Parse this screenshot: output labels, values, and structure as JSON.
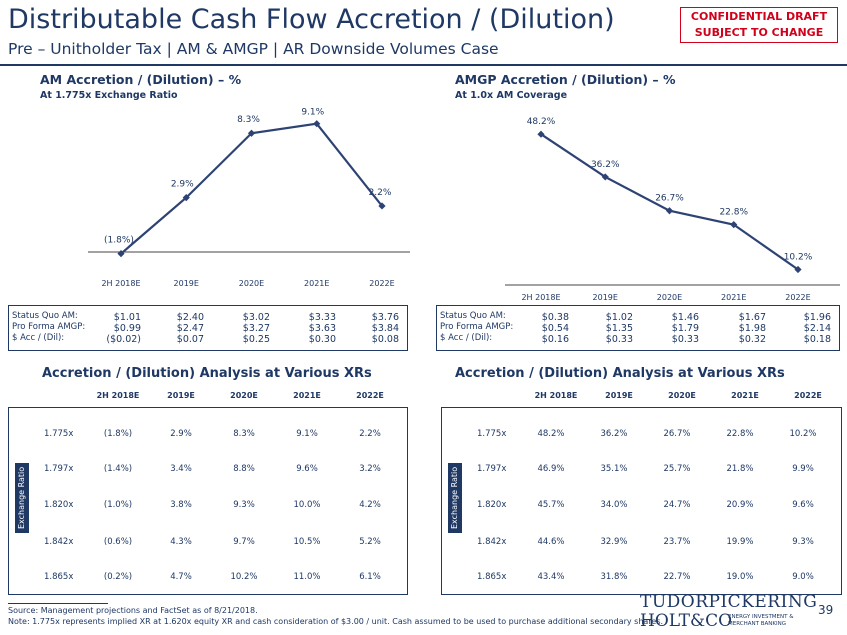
{
  "header": {
    "title": "Distributable Cash Flow Accretion / (Dilution)",
    "subtitle": "Pre – Unitholder Tax | AM & AMGP | AR Downside Volumes Case",
    "stamp_line1": "CONFIDENTIAL DRAFT",
    "stamp_line2": "SUBJECT TO CHANGE"
  },
  "chart_data": [
    {
      "type": "line",
      "title": "AM Accretion / (Dilution) – %",
      "subtitle": "At 1.775x Exchange Ratio",
      "categories": [
        "2H 2018E",
        "2019E",
        "2020E",
        "2021E",
        "2022E"
      ],
      "values": [
        -1.8,
        2.9,
        8.3,
        9.1,
        2.2
      ],
      "data_labels": [
        "(1.8%)",
        "2.9%",
        "8.3%",
        "9.1%",
        "2.2%"
      ],
      "ylim": [
        -2.5,
        10.5
      ],
      "color": "#2e4374"
    },
    {
      "type": "line",
      "title": "AMGP Accretion / (Dilution) – %",
      "subtitle": "At 1.0x AM Coverage",
      "categories": [
        "2H 2018E",
        "2019E",
        "2020E",
        "2021E",
        "2022E"
      ],
      "values": [
        48.2,
        36.2,
        26.7,
        22.8,
        10.2
      ],
      "data_labels": [
        "48.2%",
        "36.2%",
        "26.7%",
        "22.8%",
        "10.2%"
      ],
      "ylim": [
        5,
        55
      ],
      "color": "#2e4374"
    }
  ],
  "am_summary": {
    "labels": [
      "Status Quo AM:",
      "Pro Forma AMGP:",
      "$ Acc / (Dil):"
    ],
    "columns": [
      [
        "$1.01",
        "$0.99",
        "($0.02)"
      ],
      [
        "$2.40",
        "$2.47",
        "$0.07"
      ],
      [
        "$3.02",
        "$3.27",
        "$0.25"
      ],
      [
        "$3.33",
        "$3.63",
        "$0.30"
      ],
      [
        "$3.76",
        "$3.84",
        "$0.08"
      ]
    ]
  },
  "amgp_summary": {
    "labels": [
      "Status Quo AM:",
      "Pro Forma AMGP:",
      "$ Acc / (Dil):"
    ],
    "columns": [
      [
        "$0.38",
        "$0.54",
        "$0.16"
      ],
      [
        "$1.02",
        "$1.35",
        "$0.33"
      ],
      [
        "$1.46",
        "$1.79",
        "$0.33"
      ],
      [
        "$1.67",
        "$1.98",
        "$0.32"
      ],
      [
        "$1.96",
        "$2.14",
        "$0.18"
      ]
    ]
  },
  "tables": {
    "left_title": "Accretion / (Dilution) Analysis at Various XRs",
    "right_title": "Accretion / (Dilution) Analysis at Various XRs",
    "headers": [
      "2H 2018E",
      "2019E",
      "2020E",
      "2021E",
      "2022E"
    ],
    "side_label": "Exchange Ratio",
    "left_rows": [
      {
        "xr": "1.775x",
        "vals": [
          "(1.8%)",
          "2.9%",
          "8.3%",
          "9.1%",
          "2.2%"
        ]
      },
      {
        "xr": "1.797x",
        "vals": [
          "(1.4%)",
          "3.4%",
          "8.8%",
          "9.6%",
          "3.2%"
        ]
      },
      {
        "xr": "1.820x",
        "vals": [
          "(1.0%)",
          "3.8%",
          "9.3%",
          "10.0%",
          "4.2%"
        ]
      },
      {
        "xr": "1.842x",
        "vals": [
          "(0.6%)",
          "4.3%",
          "9.7%",
          "10.5%",
          "5.2%"
        ]
      },
      {
        "xr": "1.865x",
        "vals": [
          "(0.2%)",
          "4.7%",
          "10.2%",
          "11.0%",
          "6.1%"
        ]
      }
    ],
    "right_rows": [
      {
        "xr": "1.775x",
        "vals": [
          "48.2%",
          "36.2%",
          "26.7%",
          "22.8%",
          "10.2%"
        ]
      },
      {
        "xr": "1.797x",
        "vals": [
          "46.9%",
          "35.1%",
          "25.7%",
          "21.8%",
          "9.9%"
        ]
      },
      {
        "xr": "1.820x",
        "vals": [
          "45.7%",
          "34.0%",
          "24.7%",
          "20.9%",
          "9.6%"
        ]
      },
      {
        "xr": "1.842x",
        "vals": [
          "44.6%",
          "32.9%",
          "23.7%",
          "19.9%",
          "9.3%"
        ]
      },
      {
        "xr": "1.865x",
        "vals": [
          "43.4%",
          "31.8%",
          "22.7%",
          "19.0%",
          "9.0%"
        ]
      }
    ]
  },
  "footer": {
    "source": "Source: Management projections and FactSet as of 8/21/2018.",
    "note": "Note: 1.775x represents implied XR at 1.620x equity XR and cash consideration of $3.00 / unit.  Cash assumed to be used to purchase additional secondary shares.",
    "page": "39",
    "logo_line1": "TUDORPICKERING",
    "logo_line2": "HOLT&CO",
    "logo_line3a": "ENERGY INVESTMENT &",
    "logo_line3b": "MERCHANT BANKING"
  }
}
